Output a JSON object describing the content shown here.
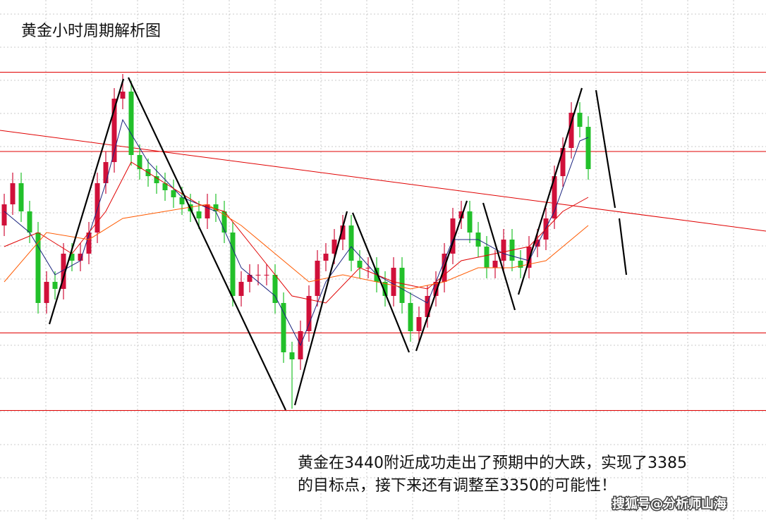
{
  "chart_data": {
    "type": "candlestick",
    "title": "黄金小时周期解析图",
    "annotation": [
      "黄金在3440附近成功走出了预期中的大跌，实现了3385",
      "的目标点，接下来还有调整至3350的可能性！"
    ],
    "watermark": "搜狐号@分析师山海",
    "ylim": [
      3332.4,
      3480
    ],
    "up_color": "#d0103a",
    "down_color": "#22c02a",
    "open": [
      3416,
      3422,
      3428,
      3420,
      3414,
      3394,
      3400,
      3398,
      3408,
      3406,
      3408,
      3414,
      3428,
      3434,
      3452,
      3454,
      3436,
      3432,
      3430,
      3428,
      3426,
      3424,
      3422,
      3420,
      3418,
      3422,
      3420,
      3414,
      3396,
      3400,
      3402,
      3402,
      3402,
      3394,
      3380,
      3378,
      3386,
      3396,
      3406,
      3408,
      3412,
      3416,
      3406,
      3404,
      3404,
      3400,
      3396,
      3404,
      3394,
      3386,
      3390,
      3396,
      3400,
      3408,
      3418,
      3420,
      3414,
      3410,
      3404,
      3406,
      3412,
      3406,
      3404,
      3410,
      3412,
      3418,
      3430,
      3438,
      3448,
      3444
    ],
    "high": [
      3425,
      3431,
      3431,
      3423,
      3417,
      3403,
      3403,
      3411,
      3411,
      3411,
      3417,
      3431,
      3437,
      3455,
      3459,
      3457,
      3439,
      3435,
      3433,
      3431,
      3429,
      3427,
      3425,
      3423,
      3425,
      3425,
      3423,
      3417,
      3403,
      3405,
      3405,
      3405,
      3405,
      3397,
      3383,
      3389,
      3399,
      3409,
      3411,
      3415,
      3419,
      3419,
      3409,
      3407,
      3407,
      3403,
      3407,
      3407,
      3397,
      3393,
      3399,
      3403,
      3411,
      3421,
      3423,
      3423,
      3417,
      3413,
      3409,
      3415,
      3415,
      3409,
      3413,
      3415,
      3421,
      3433,
      3441,
      3451,
      3451,
      3447
    ],
    "low": [
      3413,
      3419,
      3417,
      3411,
      3391,
      3391,
      3395,
      3395,
      3403,
      3403,
      3405,
      3411,
      3425,
      3431,
      3449,
      3433,
      3429,
      3427,
      3425,
      3423,
      3421,
      3419,
      3417,
      3415,
      3415,
      3417,
      3411,
      3393,
      3393,
      3397,
      3399,
      3399,
      3391,
      3377,
      3364,
      3375,
      3383,
      3393,
      3403,
      3405,
      3409,
      3403,
      3401,
      3401,
      3397,
      3393,
      3393,
      3391,
      3383,
      3383,
      3387,
      3393,
      3397,
      3405,
      3415,
      3411,
      3407,
      3401,
      3401,
      3403,
      3403,
      3401,
      3401,
      3407,
      3409,
      3415,
      3427,
      3435,
      3441,
      3429
    ],
    "close": [
      3422,
      3428,
      3420,
      3414,
      3394,
      3400,
      3398,
      3408,
      3406,
      3408,
      3414,
      3428,
      3434,
      3452,
      3454,
      3436,
      3432,
      3430,
      3428,
      3426,
      3424,
      3422,
      3420,
      3418,
      3422,
      3420,
      3414,
      3396,
      3400,
      3402,
      3402,
      3402,
      3394,
      3380,
      3378,
      3386,
      3396,
      3406,
      3408,
      3412,
      3416,
      3406,
      3404,
      3404,
      3400,
      3396,
      3404,
      3394,
      3386,
      3390,
      3396,
      3400,
      3408,
      3418,
      3420,
      3414,
      3410,
      3404,
      3406,
      3412,
      3406,
      3404,
      3410,
      3412,
      3418,
      3430,
      3438,
      3448,
      3444,
      3432
    ],
    "series": [
      {
        "color": "#1a237e",
        "x": [
          0,
          3,
          6,
          9,
          12,
          14,
          17,
          21,
          25,
          28,
          32,
          35,
          38,
          41,
          44,
          47,
          50,
          53,
          56,
          59,
          62,
          65,
          68,
          69
        ],
        "values": [
          3420,
          3414,
          3402,
          3406,
          3428,
          3446,
          3434,
          3424,
          3420,
          3404,
          3396,
          3382,
          3400,
          3410,
          3402,
          3398,
          3394,
          3412,
          3412,
          3408,
          3406,
          3420,
          3440,
          3441
        ]
      },
      {
        "color": "#e00000",
        "x": [
          0,
          4,
          8,
          12,
          15,
          19,
          23,
          26,
          30,
          34,
          38,
          42,
          46,
          50,
          54,
          58,
          62,
          66,
          69
        ],
        "values": [
          3410,
          3414,
          3408,
          3420,
          3434,
          3428,
          3422,
          3420,
          3408,
          3396,
          3394,
          3404,
          3400,
          3398,
          3406,
          3408,
          3410,
          3420,
          3424
        ]
      },
      {
        "color": "#ff5a00",
        "x": [
          0,
          5,
          10,
          14,
          19,
          24,
          28,
          32,
          36,
          40,
          44,
          48,
          52,
          56,
          60,
          64,
          69
        ],
        "values": [
          3400,
          3414,
          3412,
          3418,
          3420,
          3422,
          3416,
          3408,
          3400,
          3402,
          3400,
          3398,
          3400,
          3404,
          3404,
          3406,
          3416
        ]
      }
    ],
    "levels": [
      3459.5,
      3437,
      3385.5,
      3363.5
    ],
    "level_color": "#e00000",
    "trend_line": [
      3443,
      3414.4
    ]
  }
}
